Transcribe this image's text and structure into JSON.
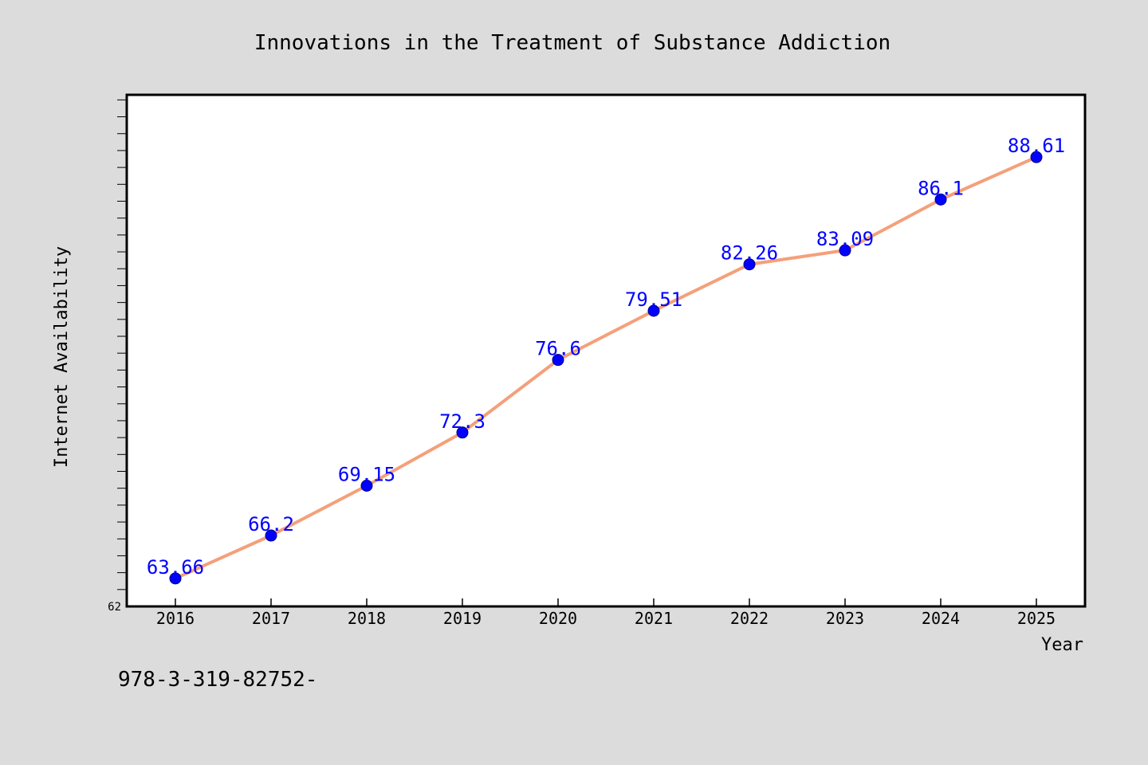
{
  "chart_data": {
    "type": "line",
    "title": "Innovations in the Treatment of Substance Addiction",
    "xlabel": "Year",
    "ylabel": "Internet Availability",
    "categories": [
      "2016",
      "2017",
      "2018",
      "2019",
      "2020",
      "2021",
      "2022",
      "2023",
      "2024",
      "2025"
    ],
    "values": [
      63.66,
      66.2,
      69.15,
      72.3,
      76.6,
      79.51,
      82.26,
      83.09,
      86.1,
      88.61
    ],
    "data_labels": [
      "63.66",
      "66.2",
      "69.15",
      "72.3",
      "76.6",
      "79.51",
      "82.26",
      "83.09",
      "86.1",
      "88.61"
    ],
    "ylim": [
      62,
      92.3
    ],
    "y_tick_label": "62",
    "grid": false,
    "line_color": "#f4a07a",
    "marker_color": "#0000ff",
    "label_color": "#0000ff",
    "plot_background": "#ffffff",
    "page_background": "#dcdcdc"
  },
  "annotation": {
    "text": "978-3-319-82752-"
  }
}
